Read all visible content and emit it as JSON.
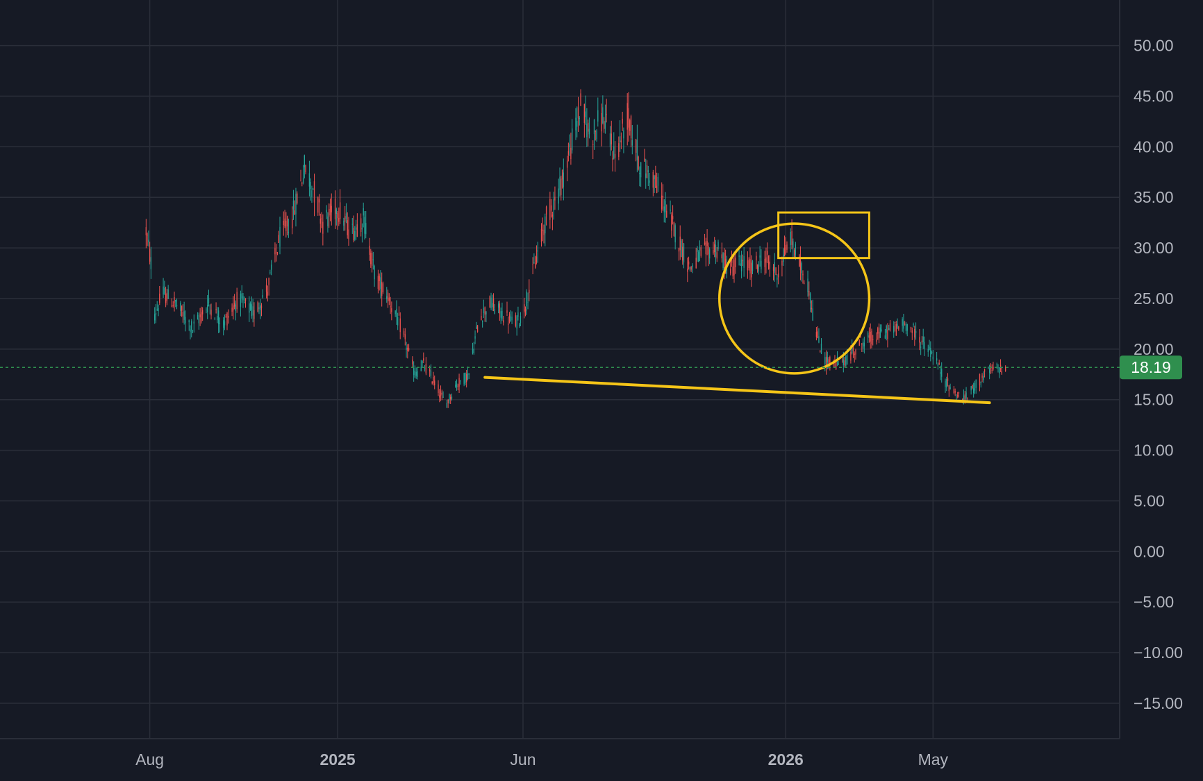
{
  "chart_data": {
    "type": "candlestick",
    "y_axis": {
      "ticks": [
        50,
        45,
        40,
        35,
        30,
        25,
        20,
        15,
        10,
        5,
        0,
        -5,
        -10,
        -15
      ],
      "tick_labels": [
        "50.00",
        "45.00",
        "40.00",
        "35.00",
        "30.00",
        "25.00",
        "20.00",
        "15.00",
        "10.00",
        "5.00",
        "0.00",
        "−5.00",
        "−10.00",
        "−15.00"
      ],
      "range": [
        -18.5,
        54.5
      ],
      "position": "right"
    },
    "x_axis": {
      "range": [
        "2024-04-01",
        "2026-09-30"
      ],
      "ticks": [
        {
          "date": "2024-08-01",
          "label": "Aug",
          "bold": false
        },
        {
          "date": "2025-01-01",
          "label": "2025",
          "bold": true
        },
        {
          "date": "2025-06-01",
          "label": "Jun",
          "bold": false
        },
        {
          "date": "2026-01-01",
          "label": "2026",
          "bold": true
        },
        {
          "date": "2026-05-01",
          "label": "May",
          "bold": false
        }
      ]
    },
    "grid": true,
    "last_price": {
      "value": 18.19,
      "label": "18.19"
    },
    "price_path": [
      [
        "2024-07-28",
        32.5
      ],
      [
        "2024-08-02",
        28.5
      ],
      [
        "2024-08-05",
        23.5
      ],
      [
        "2024-08-12",
        25.5
      ],
      [
        "2024-08-22",
        24.5
      ],
      [
        "2024-09-05",
        22.0
      ],
      [
        "2024-09-18",
        24.5
      ],
      [
        "2024-09-30",
        22.5
      ],
      [
        "2024-10-12",
        25.0
      ],
      [
        "2024-10-25",
        23.5
      ],
      [
        "2024-11-05",
        26.0
      ],
      [
        "2024-11-15",
        31.0
      ],
      [
        "2024-11-25",
        33.0
      ],
      [
        "2024-12-05",
        38.0
      ],
      [
        "2024-12-12",
        36.0
      ],
      [
        "2024-12-20",
        32.5
      ],
      [
        "2025-01-01",
        34.0
      ],
      [
        "2025-01-12",
        31.5
      ],
      [
        "2025-01-22",
        33.0
      ],
      [
        "2025-02-01",
        27.0
      ],
      [
        "2025-02-10",
        25.5
      ],
      [
        "2025-02-22",
        22.0
      ],
      [
        "2025-03-05",
        17.5
      ],
      [
        "2025-03-12",
        18.5
      ],
      [
        "2025-03-22",
        16.5
      ],
      [
        "2025-03-30",
        14.5
      ],
      [
        "2025-04-08",
        16.5
      ],
      [
        "2025-04-18",
        17.5
      ],
      [
        "2025-04-26",
        23.0
      ],
      [
        "2025-05-05",
        24.5
      ],
      [
        "2025-05-15",
        23.5
      ],
      [
        "2025-05-25",
        22.5
      ],
      [
        "2025-06-01",
        23.5
      ],
      [
        "2025-06-10",
        28.0
      ],
      [
        "2025-06-20",
        33.0
      ],
      [
        "2025-06-30",
        35.5
      ],
      [
        "2025-07-10",
        40.0
      ],
      [
        "2025-07-18",
        44.0
      ],
      [
        "2025-07-26",
        41.0
      ],
      [
        "2025-08-05",
        43.0
      ],
      [
        "2025-08-15",
        39.0
      ],
      [
        "2025-08-25",
        43.0
      ],
      [
        "2025-09-05",
        38.0
      ],
      [
        "2025-09-15",
        37.0
      ],
      [
        "2025-09-25",
        34.0
      ],
      [
        "2025-10-05",
        31.0
      ],
      [
        "2025-10-15",
        28.0
      ],
      [
        "2025-10-25",
        29.5
      ],
      [
        "2025-11-05",
        30.0
      ],
      [
        "2025-11-15",
        28.0
      ],
      [
        "2025-11-25",
        28.5
      ],
      [
        "2025-12-05",
        28.0
      ],
      [
        "2025-12-15",
        29.0
      ],
      [
        "2025-12-25",
        27.5
      ],
      [
        "2026-01-05",
        31.0
      ],
      [
        "2026-01-12",
        28.5
      ],
      [
        "2026-01-20",
        26.0
      ],
      [
        "2026-01-25",
        22.0
      ],
      [
        "2026-02-01",
        19.0
      ],
      [
        "2026-02-10",
        18.5
      ],
      [
        "2026-02-20",
        19.0
      ],
      [
        "2026-03-01",
        20.5
      ],
      [
        "2026-03-10",
        21.0
      ],
      [
        "2026-03-20",
        21.5
      ],
      [
        "2026-03-30",
        22.0
      ],
      [
        "2026-04-10",
        22.5
      ],
      [
        "2026-04-20",
        21.0
      ],
      [
        "2026-05-01",
        19.5
      ],
      [
        "2026-05-10",
        17.0
      ],
      [
        "2026-05-20",
        15.5
      ],
      [
        "2026-05-27",
        15.0
      ],
      [
        "2026-06-05",
        16.5
      ],
      [
        "2026-06-12",
        17.5
      ],
      [
        "2026-06-20",
        18.0
      ],
      [
        "2026-06-30",
        18.19
      ]
    ],
    "annotations": {
      "trendline": {
        "from": [
          "2025-05-01",
          17.2
        ],
        "to": [
          "2026-06-16",
          14.7
        ]
      },
      "rectangle": {
        "from": [
          "2025-12-26",
          33.5
        ],
        "to": [
          "2026-03-10",
          29.0
        ]
      },
      "circle": {
        "center": [
          "2026-01-08",
          25.0
        ],
        "radius_value": 7.4
      }
    },
    "colors": {
      "background": "#161a25",
      "grid": "#2a2e39",
      "text": "#b2b5be",
      "up": "#26a69a",
      "down": "#ef5350",
      "annotation": "#f5c518",
      "last_price_line": "#2f8f4e",
      "last_price_badge": "#2f8f4e"
    }
  }
}
